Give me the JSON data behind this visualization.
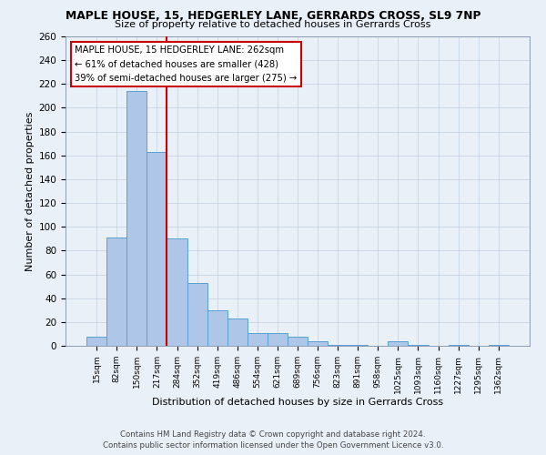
{
  "title": "MAPLE HOUSE, 15, HEDGERLEY LANE, GERRARDS CROSS, SL9 7NP",
  "subtitle": "Size of property relative to detached houses in Gerrards Cross",
  "xlabel": "Distribution of detached houses by size in Gerrards Cross",
  "ylabel": "Number of detached properties",
  "bar_labels": [
    "15sqm",
    "82sqm",
    "150sqm",
    "217sqm",
    "284sqm",
    "352sqm",
    "419sqm",
    "486sqm",
    "554sqm",
    "621sqm",
    "689sqm",
    "756sqm",
    "823sqm",
    "891sqm",
    "958sqm",
    "1025sqm",
    "1093sqm",
    "1160sqm",
    "1227sqm",
    "1295sqm",
    "1362sqm"
  ],
  "bar_values": [
    8,
    91,
    214,
    163,
    90,
    53,
    30,
    23,
    11,
    11,
    8,
    4,
    1,
    1,
    0,
    4,
    1,
    0,
    1,
    0,
    1
  ],
  "bar_color": "#aec6e8",
  "bar_edge_color": "#5a9fd4",
  "vline_color": "#cc0000",
  "ylim": [
    0,
    260
  ],
  "yticks": [
    0,
    20,
    40,
    60,
    80,
    100,
    120,
    140,
    160,
    180,
    200,
    220,
    240,
    260
  ],
  "annotation_line1": "MAPLE HOUSE, 15 HEDGERLEY LANE: 262sqm",
  "annotation_line2": "← 61% of detached houses are smaller (428)",
  "annotation_line3": "39% of semi-detached houses are larger (275) →",
  "footer1": "Contains HM Land Registry data © Crown copyright and database right 2024.",
  "footer2": "Contains public sector information licensed under the Open Government Licence v3.0.",
  "bg_color": "#eaf0f8",
  "plot_bg_color": "#eaf0f8",
  "box_color": "#cc0000",
  "vline_index": 3.5
}
